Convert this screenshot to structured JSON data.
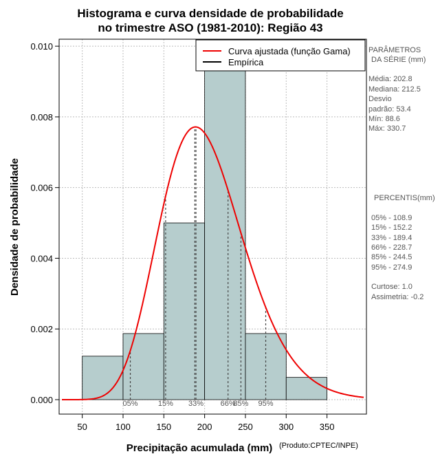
{
  "chart_data": {
    "type": "bar",
    "title_line1": "Histograma e curva densidade de probabilidade",
    "title_line2": "no trimestre ASO (1981-2010): Região 43",
    "xlabel": "Precipitação acumulada (mm)",
    "ylabel": "Densidade de probabilidade",
    "credit": "(Produto:CPTEC/INPE)",
    "xlim": [
      25,
      395
    ],
    "ylim": [
      0,
      0.0101
    ],
    "x_ticks": [
      50,
      100,
      150,
      200,
      250,
      300,
      350
    ],
    "y_ticks": [
      0.0,
      0.002,
      0.004,
      0.006,
      0.008,
      0.01
    ],
    "y_tick_labels": [
      "0.000",
      "0.002",
      "0.004",
      "0.006",
      "0.008",
      "0.010"
    ],
    "bins": [
      {
        "start": 50,
        "end": 100,
        "density": 0.00123
      },
      {
        "start": 100,
        "end": 150,
        "density": 0.00187
      },
      {
        "start": 150,
        "end": 200,
        "density": 0.005
      },
      {
        "start": 200,
        "end": 250,
        "density": 0.0098
      },
      {
        "start": 250,
        "end": 300,
        "density": 0.00187
      },
      {
        "start": 300,
        "end": 350,
        "density": 0.00063
      }
    ],
    "bar_color": "#b6cdcd",
    "curve_color": "#ee0000",
    "gamma_shape": 14.5,
    "gamma_mean": 202.8,
    "mode_marker": 188,
    "legend": [
      {
        "label": "Curva ajustada (função Gama)",
        "color": "#ee0000"
      },
      {
        "label": "Empírica",
        "color": "#000000"
      }
    ],
    "percentiles": [
      {
        "label": "05%",
        "value": 108.9
      },
      {
        "label": "15%",
        "value": 152.2
      },
      {
        "label": "33%",
        "value": 189.4
      },
      {
        "label": "66%",
        "value": 228.7
      },
      {
        "label": "85%",
        "value": 244.5
      },
      {
        "label": "95%",
        "value": 274.9
      }
    ]
  },
  "side_panel": {
    "params_title1": "PARÂMETROS",
    "params_title2": "DA SÉRIE (mm)",
    "media": "Média:  202.8",
    "mediana": "Mediana:  212.5",
    "desvio1": "Desvio",
    "desvio2": "padrão:  53.4",
    "min": "Mín:  88.6",
    "max": "Máx:  330.7",
    "percentis_title": "PERCENTIS(mm)",
    "p05": "05% -   108.9",
    "p15": "15% -   152.2",
    "p33": "33% -   189.4",
    "p66": "66% -   228.7",
    "p85": "85% -   244.5",
    "p95": "95% -   274.9",
    "curtose": "Curtose:  1.0",
    "assimetria": "Assimetria:  -0.2"
  }
}
